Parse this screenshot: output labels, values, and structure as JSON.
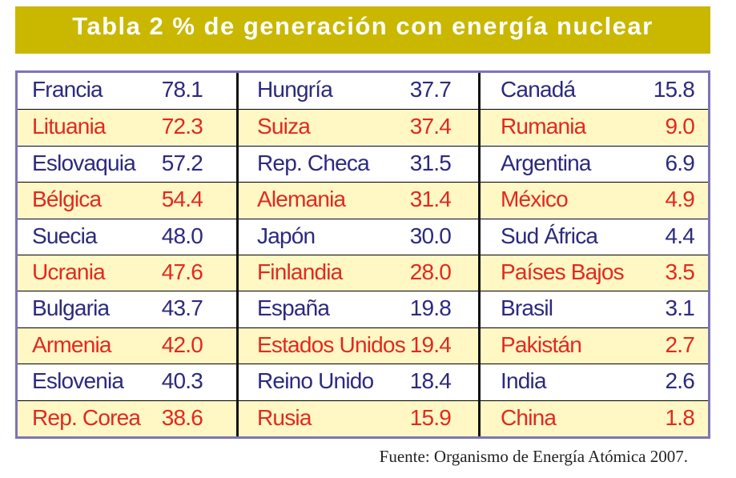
{
  "title": "Tabla 2  % de generación con energía nuclear",
  "columns": [
    [
      {
        "country": "Francia",
        "value": "78.1"
      },
      {
        "country": "Lituania",
        "value": "72.3"
      },
      {
        "country": "Eslovaquia",
        "value": "57.2"
      },
      {
        "country": "Bélgica",
        "value": "54.4"
      },
      {
        "country": "Suecia",
        "value": "48.0"
      },
      {
        "country": "Ucrania",
        "value": "47.6"
      },
      {
        "country": "Bulgaria",
        "value": "43.7"
      },
      {
        "country": "Armenia",
        "value": "42.0"
      },
      {
        "country": "Eslovenia",
        "value": "40.3"
      },
      {
        "country": "Rep. Corea",
        "value": "38.6"
      }
    ],
    [
      {
        "country": "Hungría",
        "value": "37.7"
      },
      {
        "country": "Suiza",
        "value": "37.4"
      },
      {
        "country": "Rep. Checa",
        "value": "31.5"
      },
      {
        "country": "Alemania",
        "value": "31.4"
      },
      {
        "country": "Japón",
        "value": "30.0"
      },
      {
        "country": "Finlandia",
        "value": "28.0"
      },
      {
        "country": "España",
        "value": "19.8"
      },
      {
        "country": "Estados Unidos",
        "value": "19.4"
      },
      {
        "country": "Reino Unido",
        "value": "18.4"
      },
      {
        "country": "Rusia",
        "value": "15.9"
      }
    ],
    [
      {
        "country": "Canadá",
        "value": "15.8"
      },
      {
        "country": "Rumania",
        "value": "9.0"
      },
      {
        "country": "Argentina",
        "value": "6.9"
      },
      {
        "country": "México",
        "value": "4.9"
      },
      {
        "country": "Sud África",
        "value": "4.4"
      },
      {
        "country": "Países Bajos",
        "value": "3.5"
      },
      {
        "country": "Brasil",
        "value": "3.1"
      },
      {
        "country": "Pakistán",
        "value": "2.7"
      },
      {
        "country": "India",
        "value": "2.6"
      },
      {
        "country": "China",
        "value": "1.8"
      }
    ]
  ],
  "source": "Fuente: Organismo de Energía Atómica 2007.",
  "colors": {
    "title_bar": "#c9b700",
    "border": "#7d74b8",
    "odd_row_text": "#2b2a7e",
    "even_row_text": "#e2291f",
    "even_row_bg": "#fff7c4"
  }
}
